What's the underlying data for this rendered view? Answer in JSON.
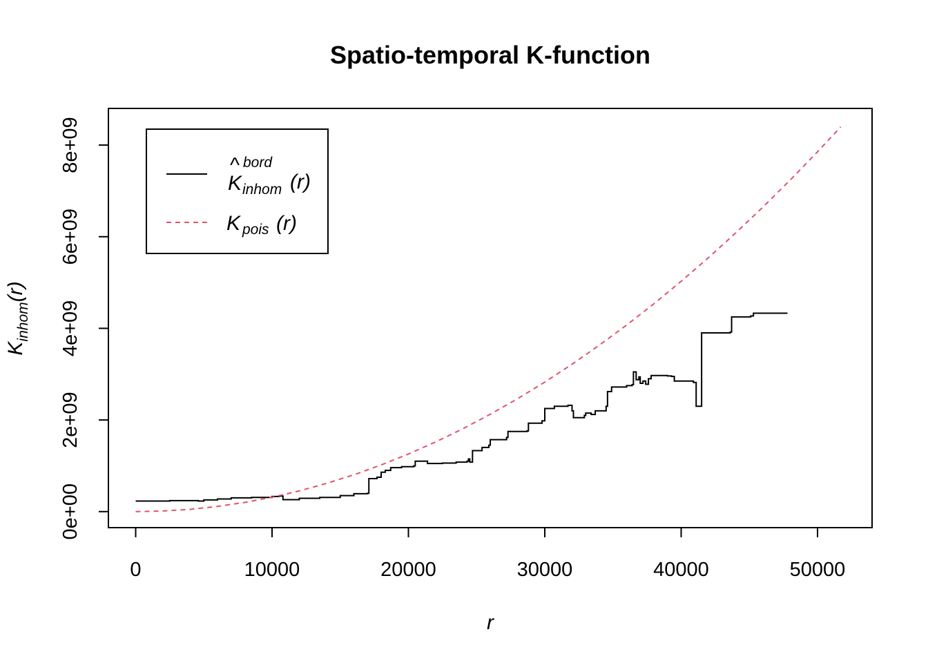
{
  "chart_data": {
    "type": "line",
    "title": "Spatio-temporal K-function",
    "xlabel": "r",
    "ylabel": {
      "main": "K",
      "sub": "inhom",
      "arg": "(r)"
    },
    "xlim": [
      -2000,
      54000
    ],
    "ylim": [
      -350000000.0,
      8800000000.0
    ],
    "x_ticks": [
      0,
      10000,
      20000,
      30000,
      40000,
      50000
    ],
    "x_tick_labels": [
      "0",
      "10000",
      "20000",
      "30000",
      "40000",
      "50000"
    ],
    "y_ticks": [
      0,
      2000000000,
      4000000000,
      6000000000,
      8000000000
    ],
    "y_tick_labels": [
      "0e+00",
      "2e+09",
      "4e+09",
      "6e+09",
      "8e+09"
    ],
    "grid": false,
    "legend": {
      "position": "top-left",
      "entries": [
        {
          "main": "K",
          "hat": "^",
          "sup": "bord",
          "sub": "inhom",
          "arg": "(r)"
        },
        {
          "main": "K",
          "sub": "pois",
          "arg": "(r)"
        }
      ]
    },
    "series": [
      {
        "color": "#000000",
        "style": "solid",
        "points": [
          [
            0,
            230000000.0
          ],
          [
            2000,
            230000000.0
          ],
          [
            2500,
            240000000.0
          ],
          [
            4000,
            240000000.0
          ],
          [
            4600,
            230000000.0
          ],
          [
            5000,
            255000000.0
          ],
          [
            6000,
            275000000.0
          ],
          [
            7000,
            300000000.0
          ],
          [
            8500,
            310000000.0
          ],
          [
            10000,
            330000000.0
          ],
          [
            10500,
            340000000.0
          ],
          [
            10800,
            260000000.0
          ],
          [
            11500,
            260000000.0
          ],
          [
            12000,
            290000000.0
          ],
          [
            13500,
            310000000.0
          ],
          [
            15000,
            350000000.0
          ],
          [
            16000,
            390000000.0
          ],
          [
            17000,
            400000000.0
          ],
          [
            17100,
            720000000.0
          ],
          [
            17700,
            750000000.0
          ],
          [
            18000,
            860000000.0
          ],
          [
            18300,
            900000000.0
          ],
          [
            18700,
            960000000.0
          ],
          [
            19500,
            980000000.0
          ],
          [
            20400,
            1000000000.0
          ],
          [
            20500,
            1100000000.0
          ],
          [
            21300,
            1100000000.0
          ],
          [
            21400,
            1050000000.0
          ],
          [
            22500,
            1060000000.0
          ],
          [
            23500,
            1080000000.0
          ],
          [
            24300,
            1100000000.0
          ],
          [
            24400,
            1150000000.0
          ],
          [
            24500,
            1080000000.0
          ],
          [
            24700,
            1330000000.0
          ],
          [
            25400,
            1400000000.0
          ],
          [
            25900,
            1450000000.0
          ],
          [
            26000,
            1570000000.0
          ],
          [
            27200,
            1620000000.0
          ],
          [
            27300,
            1750000000.0
          ],
          [
            28700,
            1760000000.0
          ],
          [
            28800,
            1930000000.0
          ],
          [
            29800,
            1980000000.0
          ],
          [
            30000,
            2250000000.0
          ],
          [
            30700,
            2300000000.0
          ],
          [
            31700,
            2320000000.0
          ],
          [
            32000,
            2200000000.0
          ],
          [
            32100,
            2050000000.0
          ],
          [
            32900,
            2100000000.0
          ],
          [
            33000,
            2150000000.0
          ],
          [
            33400,
            2120000000.0
          ],
          [
            33700,
            2200000000.0
          ],
          [
            34500,
            2300000000.0
          ],
          [
            34600,
            2620000000.0
          ],
          [
            34900,
            2720000000.0
          ],
          [
            36000,
            2750000000.0
          ],
          [
            36400,
            2770000000.0
          ],
          [
            36500,
            3050000000.0
          ],
          [
            36700,
            2880000000.0
          ],
          [
            36900,
            2940000000.0
          ],
          [
            37000,
            2800000000.0
          ],
          [
            37200,
            2850000000.0
          ],
          [
            37400,
            2780000000.0
          ],
          [
            37600,
            2900000000.0
          ],
          [
            37800,
            2970000000.0
          ],
          [
            39000,
            2960000000.0
          ],
          [
            39300,
            2950000000.0
          ],
          [
            39500,
            2850000000.0
          ],
          [
            40900,
            2820000000.0
          ],
          [
            41100,
            2300000000.0
          ],
          [
            41400,
            2300000000.0
          ],
          [
            41500,
            3900000000.0
          ],
          [
            43600,
            3920000000.0
          ],
          [
            43700,
            4250000000.0
          ],
          [
            45100,
            4270000000.0
          ],
          [
            45300,
            4330000000.0
          ],
          [
            47800,
            4330000000.0
          ]
        ]
      },
      {
        "color": "#DF536B",
        "style": "dashed",
        "points": [
          [
            0,
            0.0
          ],
          [
            2000,
            13000000.0
          ],
          [
            4000,
            50000000.0
          ],
          [
            6000,
            113000000.0
          ],
          [
            8000,
            200000000.0
          ],
          [
            10000,
            314000000.0
          ],
          [
            12000,
            452000000.0
          ],
          [
            14000,
            616000000.0
          ],
          [
            16000,
            804000000.0
          ],
          [
            18000,
            1018000000.0
          ],
          [
            20000,
            1257000000.0
          ],
          [
            22000,
            1521000000.0
          ],
          [
            24000,
            1810000000.0
          ],
          [
            26000,
            2124000000.0
          ],
          [
            28000,
            2463000000.0
          ],
          [
            30000,
            2827000000.0
          ],
          [
            32000,
            3217000000.0
          ],
          [
            34000,
            3632000000.0
          ],
          [
            36000,
            4072000000.0
          ],
          [
            38000,
            4536000000.0
          ],
          [
            40000,
            5027000000.0
          ],
          [
            42000,
            5542000000.0
          ],
          [
            44000,
            6082000000.0
          ],
          [
            46000,
            6648000000.0
          ],
          [
            48000,
            7238000000.0
          ],
          [
            50000,
            7854000000.0
          ],
          [
            51700,
            8397000000.0
          ]
        ]
      }
    ]
  }
}
